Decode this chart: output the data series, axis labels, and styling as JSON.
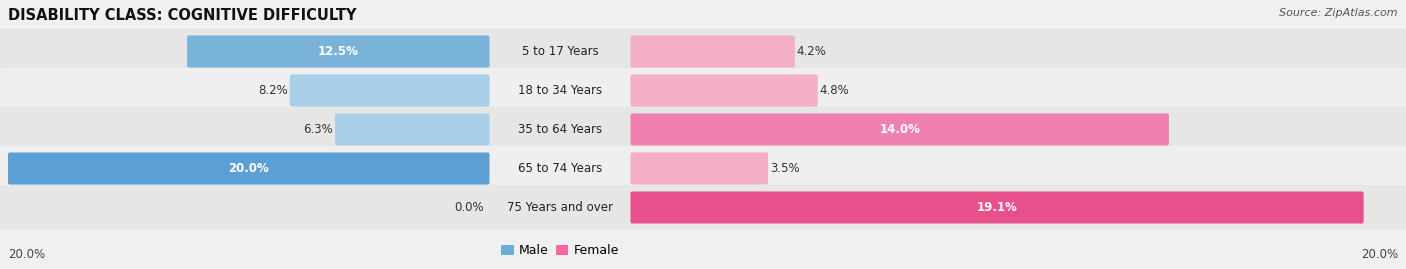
{
  "title": "DISABILITY CLASS: COGNITIVE DIFFICULTY",
  "source": "Source: ZipAtlas.com",
  "categories": [
    "5 to 17 Years",
    "18 to 34 Years",
    "35 to 64 Years",
    "65 to 74 Years",
    "75 Years and over"
  ],
  "male_values": [
    12.5,
    8.2,
    6.3,
    20.0,
    0.0
  ],
  "female_values": [
    4.2,
    4.8,
    14.0,
    3.5,
    19.1
  ],
  "male_color_light": "#a8cfe8",
  "male_color_mid": "#7ab3d9",
  "male_color_strong": "#5b9fd4",
  "female_color_light": "#f4aec8",
  "female_color_mid": "#f080b0",
  "female_color_strong": "#e8508c",
  "axis_max": 20.0,
  "background_color": "#f0f0f0",
  "row_color_odd": "#e6e6e6",
  "row_color_even": "#efefef",
  "title_fontsize": 10.5,
  "label_fontsize": 8.5,
  "tick_fontsize": 8.5,
  "legend_fontsize": 9,
  "source_fontsize": 8
}
